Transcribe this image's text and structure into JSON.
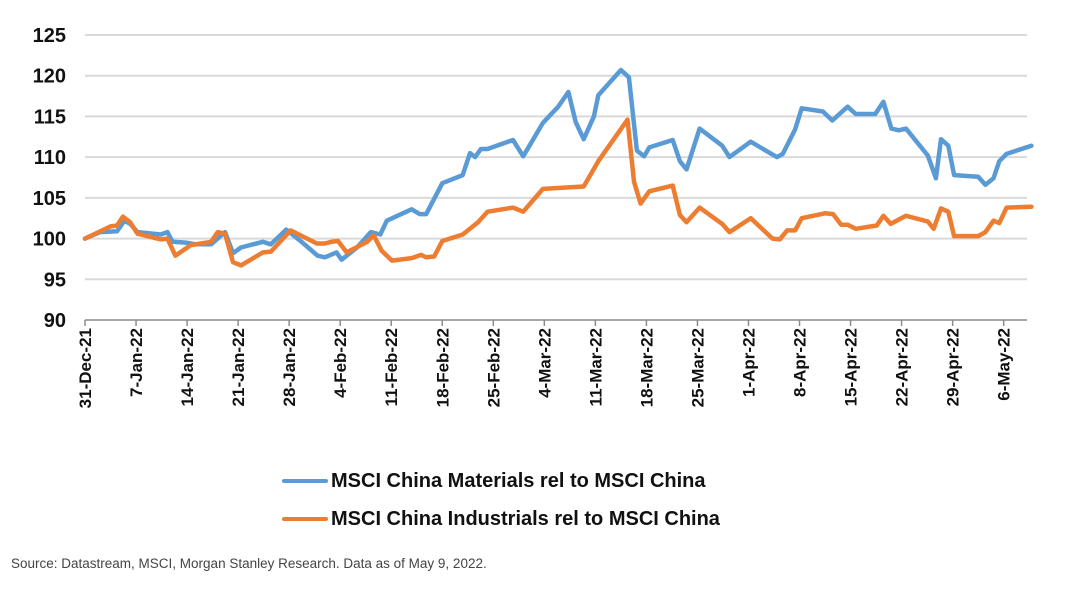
{
  "chart_data": {
    "type": "line",
    "title": "",
    "xlabel": "",
    "ylabel": "",
    "ylim": [
      90,
      125
    ],
    "yticks": [
      90,
      95,
      100,
      105,
      110,
      115,
      120,
      125
    ],
    "grid": true,
    "legend_position": "bottom",
    "x_start": "2021-12-31",
    "x_end": "2022-05-09",
    "xtick_labels": [
      "31-Dec-21",
      "7-Jan-22",
      "14-Jan-22",
      "21-Jan-22",
      "28-Jan-22",
      "4-Feb-22",
      "11-Feb-22",
      "18-Feb-22",
      "25-Feb-22",
      "4-Mar-22",
      "11-Mar-22",
      "18-Mar-22",
      "25-Mar-22",
      "1-Apr-22",
      "8-Apr-22",
      "15-Apr-22",
      "22-Apr-22",
      "29-Apr-22",
      "6-May-22"
    ],
    "xtick_dates": [
      "2021-12-31",
      "2022-01-07",
      "2022-01-14",
      "2022-01-21",
      "2022-01-28",
      "2022-02-04",
      "2022-02-11",
      "2022-02-18",
      "2022-02-25",
      "2022-03-04",
      "2022-03-11",
      "2022-03-18",
      "2022-03-25",
      "2022-04-01",
      "2022-04-08",
      "2022-04-15",
      "2022-04-22",
      "2022-04-29",
      "2022-05-06"
    ],
    "series": [
      {
        "name": "MSCI China Materials rel to MSCI China",
        "color": "#5B9BD5",
        "day_offsets": [
          0,
          2.1,
          4.4,
          5.4,
          6.2,
          7.2,
          10.4,
          11.3,
          12.0,
          13.8,
          15.2,
          17.3,
          19.2,
          20.3,
          21.4,
          24.4,
          25.5,
          27.6,
          29.7,
          31.9,
          32.9,
          34.5,
          35.2,
          37.3,
          39.2,
          40.5,
          41.4,
          44.8,
          45.9,
          46.8,
          49.0,
          51.8,
          52.8,
          53.5,
          54.3,
          55.2,
          58.7,
          60.1,
          62.8,
          64.9,
          66.3,
          67.3,
          68.4,
          69.8,
          70.4,
          73.5,
          74.6,
          75.7,
          76.7,
          77.4,
          80.6,
          81.6,
          82.5,
          84.3,
          87.4,
          88.4,
          91.3,
          94.9,
          95.7,
          97.4,
          98.3,
          101.2,
          102.5,
          104.6,
          105.7,
          108.4,
          109.5,
          110.6,
          111.6,
          112.6,
          115.6,
          116.7,
          117.4,
          118.4,
          119.2,
          122.5,
          123.5,
          124.6,
          125.4,
          126.4,
          129.8
        ],
        "values": [
          100,
          100.8,
          100.9,
          102.2,
          101.8,
          100.8,
          100.5,
          100.8,
          99.6,
          99.5,
          99.3,
          99.3,
          100.8,
          98.2,
          98.9,
          99.6,
          99.3,
          101.1,
          99.6,
          97.9,
          97.7,
          98.3,
          97.4,
          98.9,
          100.8,
          100.5,
          102.2,
          103.6,
          103.0,
          103.0,
          106.8,
          107.8,
          110.5,
          110.0,
          111.0,
          111.0,
          112.1,
          110.1,
          114.2,
          116.2,
          118.0,
          114.3,
          112.2,
          115.0,
          117.6,
          120.7,
          119.8,
          110.8,
          110.1,
          111.2,
          112.1,
          109.5,
          108.5,
          113.5,
          111.4,
          110.0,
          111.9,
          110.0,
          110.4,
          113.4,
          116.0,
          115.6,
          114.5,
          116.2,
          115.3,
          115.3,
          116.8,
          113.5,
          113.3,
          113.5,
          110.2,
          107.4,
          112.2,
          111.4,
          107.8,
          107.6,
          106.6,
          107.4,
          109.5,
          110.4,
          111.4
        ]
      },
      {
        "name": "MSCI China Industrials rel to MSCI China",
        "color": "#ED7D31",
        "day_offsets": [
          0,
          3.5,
          4.4,
          5.2,
          6.2,
          7.2,
          10.4,
          11.3,
          12.4,
          14.5,
          17.3,
          18.2,
          19.2,
          20.3,
          21.4,
          24.4,
          25.5,
          28.2,
          31.8,
          32.9,
          33.8,
          34.7,
          35.9,
          38.7,
          39.6,
          40.7,
          42.1,
          44.8,
          46.1,
          46.8,
          47.9,
          49.0,
          51.8,
          53.9,
          55.2,
          58.7,
          60.1,
          62.8,
          66.6,
          68.4,
          70.4,
          74.4,
          75.3,
          76.2,
          77.4,
          80.6,
          81.6,
          82.5,
          84.3,
          87.4,
          88.4,
          91.3,
          94.3,
          95.3,
          96.3,
          97.4,
          98.3,
          101.5,
          102.6,
          103.7,
          104.6,
          105.7,
          108.6,
          109.5,
          110.5,
          112.6,
          115.6,
          116.4,
          117.4,
          118.4,
          119.2,
          122.5,
          123.5,
          124.6,
          125.4,
          126.4,
          129.8
        ],
        "values": [
          100,
          101.5,
          101.6,
          102.7,
          102.0,
          100.6,
          99.9,
          100.0,
          97.9,
          99.2,
          99.6,
          100.8,
          100.6,
          97.1,
          96.7,
          98.3,
          98.4,
          101.0,
          99.4,
          99.4,
          99.6,
          99.7,
          98.3,
          99.6,
          100.4,
          98.5,
          97.3,
          97.6,
          98.0,
          97.7,
          97.8,
          99.7,
          100.5,
          102.0,
          103.3,
          103.8,
          103.3,
          106.1,
          106.3,
          106.4,
          109.5,
          114.6,
          107.0,
          104.3,
          105.8,
          106.5,
          102.9,
          102.0,
          103.8,
          101.8,
          100.8,
          102.5,
          100.0,
          99.9,
          101.0,
          101.0,
          102.5,
          103.1,
          103.0,
          101.7,
          101.7,
          101.2,
          101.6,
          102.8,
          101.8,
          102.8,
          102.1,
          101.2,
          103.7,
          103.3,
          100.3,
          100.3,
          100.8,
          102.2,
          101.9,
          103.8,
          103.9
        ]
      }
    ]
  },
  "legend": {
    "items": [
      {
        "label": "MSCI China Materials rel to MSCI China",
        "color": "#5B9BD5"
      },
      {
        "label": "MSCI China Industrials rel to MSCI China",
        "color": "#ED7D31"
      }
    ]
  },
  "source": "Source: Datastream, MSCI, Morgan Stanley Research. Data as of May 9, 2022."
}
